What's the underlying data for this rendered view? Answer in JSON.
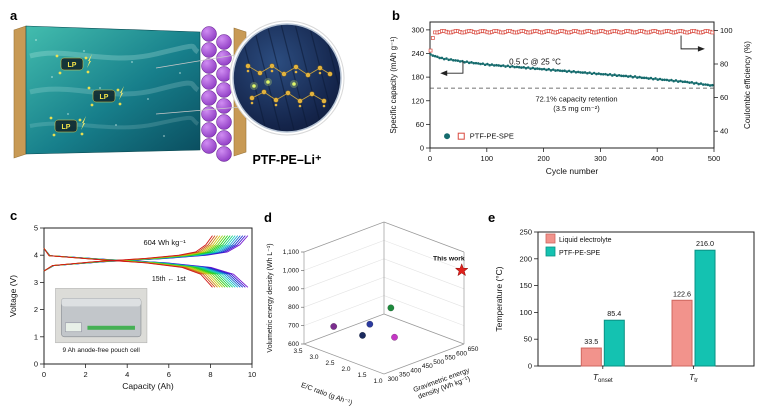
{
  "figure": {
    "background": "#ffffff",
    "panels": {
      "a": {
        "label": "a",
        "caption": "PTF-PE–Li⁺",
        "lp": "LP"
      },
      "b": {
        "label": "b"
      },
      "c": {
        "label": "c"
      },
      "d": {
        "label": "d"
      },
      "e": {
        "label": "e"
      }
    }
  },
  "chart_data": [
    {
      "id": "b",
      "type": "scatter",
      "xlabel": "Cycle number",
      "ylabel_left": "Specific capacity (mAh g⁻¹)",
      "ylabel_right": "Coulombic efficiency (%)",
      "xlim": [
        0,
        500
      ],
      "xticks": [
        0,
        100,
        200,
        300,
        400,
        500
      ],
      "ylim_left": [
        0,
        320
      ],
      "yticks_left": [
        0,
        60,
        120,
        180,
        240,
        300
      ],
      "ylim_right": [
        30,
        105
      ],
      "yticks_right": [
        40,
        60,
        80,
        100
      ],
      "legend": "PTF-PE-SPE",
      "annotation_rate": "0.5 C @ 25 °C",
      "annotation_retention": "72.1% capacity retention",
      "annotation_loading": "(3.5 mg cm⁻²)",
      "dashed_value": 152,
      "capacity_color": "#156b6d",
      "ce_color": "#d9493e",
      "capacity_points": {
        "cycles": [
          1,
          20,
          60,
          100,
          150,
          200,
          250,
          300,
          350,
          400,
          450,
          500
        ],
        "values": [
          237,
          228,
          219,
          212,
          206,
          200,
          194,
          188,
          182,
          175,
          168,
          158
        ]
      },
      "ce_value": 99.2,
      "ce_first": 88,
      "ce_second": 95.5
    },
    {
      "id": "c",
      "type": "line",
      "xlabel": "Capacity (Ah)",
      "ylabel": "Voltage (V)",
      "xlim": [
        0,
        10
      ],
      "xticks": [
        0,
        2,
        4,
        6,
        8,
        10
      ],
      "ylim": [
        0,
        5
      ],
      "yticks": [
        0,
        1,
        2,
        3,
        4,
        5
      ],
      "n_cycles": 15,
      "first_capacity": 9.8,
      "last_capacity": 8.1,
      "charge_profile": [
        [
          0,
          3.42
        ],
        [
          0.05,
          3.62
        ],
        [
          0.3,
          3.76
        ],
        [
          0.6,
          3.88
        ],
        [
          0.8,
          4.0
        ],
        [
          0.9,
          4.12
        ],
        [
          0.96,
          4.38
        ],
        [
          1.0,
          4.72
        ]
      ],
      "discharge_profile": [
        [
          0,
          4.25
        ],
        [
          0.03,
          3.98
        ],
        [
          0.3,
          3.85
        ],
        [
          0.6,
          3.72
        ],
        [
          0.82,
          3.55
        ],
        [
          0.93,
          3.3
        ],
        [
          1.0,
          2.82
        ]
      ],
      "annotation_energy": "604 Wh kg⁻¹",
      "annotation_cycles": "15th ← 1st",
      "inset_caption": "9 Ah anode-free pouch cell"
    },
    {
      "id": "d",
      "type": "scatter3d",
      "xlabel": "E/C ratio (g Ah⁻¹)",
      "ylabel_line1": "Gravimetric energy",
      "ylabel_line2": "density (Wh kg⁻¹)",
      "zlabel": "Volumetric energy density (Wh L⁻¹)",
      "xticks": [
        3.5,
        3.0,
        2.5,
        2.0,
        1.5,
        1.0
      ],
      "yticks": [
        300,
        350,
        400,
        450,
        500,
        550,
        600,
        650
      ],
      "zticks": [
        600,
        700,
        800,
        900,
        1000,
        1100
      ],
      "xlim": [
        3.5,
        1.0
      ],
      "ylim": [
        300,
        650
      ],
      "zlim": [
        600,
        1100
      ],
      "points": [
        {
          "ec": 3.0,
          "grav": 360,
          "vol": 700,
          "color": "#7b2d8e"
        },
        {
          "ec": 2.3,
          "grav": 420,
          "vol": 730,
          "color": "#2b3a9f"
        },
        {
          "ec": 2.0,
          "grav": 470,
          "vol": 815,
          "color": "#1d8a3c"
        },
        {
          "ec": 1.6,
          "grav": 430,
          "vol": 700,
          "color": "#c437c4"
        },
        {
          "ec": 2.6,
          "grav": 430,
          "vol": 645,
          "color": "#1b2a5e"
        }
      ],
      "highlight": {
        "ec": 1.0,
        "grav": 640,
        "vol": 1005,
        "color": "#e0201c",
        "label": "This work"
      }
    },
    {
      "id": "e",
      "type": "bar",
      "ylabel": "Temperature (°C)",
      "ylim": [
        0,
        250
      ],
      "yticks": [
        0,
        50,
        100,
        150,
        200,
        250
      ],
      "categories": [
        {
          "base": "T",
          "sub": "onset"
        },
        {
          "base": "T",
          "sub": "tr"
        }
      ],
      "series": [
        {
          "name": "Liquid electrolyte",
          "color": "#f2938c",
          "edge": "#cf675f",
          "values": [
            33.5,
            122.6
          ]
        },
        {
          "name": "PTF-PE-SPE",
          "color": "#14c2b1",
          "edge": "#0a9184",
          "values": [
            85.4,
            216.0
          ]
        }
      ]
    }
  ]
}
